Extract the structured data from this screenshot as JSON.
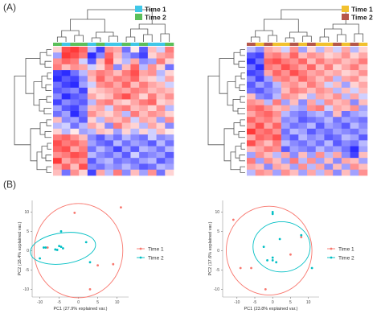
{
  "figure": {
    "panel_a_label": "(A)",
    "panel_b_label": "(B)"
  },
  "heatmap_left": {
    "legend": [
      {
        "label": "Time 1",
        "color": "#3fc7e8"
      },
      {
        "label": "Time 2",
        "color": "#5bbf5a"
      }
    ],
    "rows": 22,
    "cols": 14,
    "values": [
      [
        0.2,
        0.8,
        0.9,
        0.7,
        -0.3,
        -0.8,
        0.5,
        0.4,
        -0.6,
        0.1,
        -0.7,
        0.3,
        -0.2,
        0.6
      ],
      [
        -0.4,
        0.9,
        0.8,
        0.6,
        -0.9,
        -0.5,
        0.7,
        0.3,
        -0.4,
        -0.6,
        -0.8,
        0.2,
        0.4,
        0.5
      ],
      [
        0.5,
        0.7,
        0.6,
        -0.2,
        -0.7,
        0.3,
        0.8,
        0.2,
        -0.3,
        0.4,
        -0.5,
        -0.4,
        0.6,
        0.2
      ],
      [
        0.6,
        0.3,
        0.5,
        0.4,
        -0.2,
        0.2,
        0.6,
        -0.5,
        0.3,
        0.7,
        -0.3,
        0.5,
        0.2,
        -0.6
      ],
      [
        -0.8,
        -0.9,
        -0.6,
        -0.3,
        0.4,
        0.6,
        0.5,
        0.3,
        0.6,
        0.8,
        0.4,
        0.5,
        -0.3,
        0.2
      ],
      [
        -0.9,
        -0.7,
        -0.8,
        -0.5,
        0.3,
        0.7,
        0.4,
        0.6,
        0.5,
        0.7,
        0.3,
        0.2,
        -0.2,
        0.4
      ],
      [
        -0.6,
        -0.8,
        -0.9,
        -0.4,
        -0.2,
        0.5,
        0.6,
        0.4,
        0.7,
        0.3,
        0.6,
        0.4,
        0.3,
        -0.2
      ],
      [
        -0.7,
        -0.6,
        -0.5,
        -0.8,
        0.2,
        0.3,
        0.4,
        0.5,
        0.4,
        0.6,
        0.5,
        0.3,
        0.4,
        0.3
      ],
      [
        -0.5,
        -0.9,
        -0.7,
        -0.6,
        0.4,
        0.2,
        0.3,
        0.6,
        0.8,
        0.5,
        0.2,
        0.6,
        0.3,
        0.5
      ],
      [
        -0.8,
        -0.5,
        -0.6,
        -0.7,
        -0.3,
        0.5,
        0.6,
        0.3,
        0.2,
        0.4,
        0.6,
        0.7,
        0.2,
        0.3
      ],
      [
        -0.4,
        -0.7,
        -0.8,
        -0.5,
        0.3,
        0.4,
        -0.2,
        0.5,
        0.6,
        0.3,
        0.4,
        0.2,
        0.5,
        -0.3
      ],
      [
        -0.6,
        -0.4,
        -0.9,
        -0.6,
        0.5,
        0.3,
        0.2,
        0.4,
        -0.3,
        0.6,
        0.3,
        0.5,
        0.4,
        0.2
      ],
      [
        0.3,
        -0.5,
        -0.4,
        -0.7,
        0.2,
        -0.3,
        0.4,
        0.3,
        0.5,
        -0.2,
        0.4,
        0.3,
        -0.4,
        0.5
      ],
      [
        -0.3,
        -0.2,
        -0.6,
        -0.3,
        0.4,
        0.2,
        -0.5,
        0.6,
        0.3,
        0.2,
        -0.3,
        0.4,
        0.2,
        -0.5
      ],
      [
        0.2,
        -0.3,
        0.1,
        -0.4,
        -0.3,
        0.3,
        0.2,
        -0.4,
        0.2,
        -0.3,
        0.2,
        -0.2,
        0.3,
        0.1
      ],
      [
        0.6,
        0.7,
        0.5,
        0.3,
        -0.5,
        -0.7,
        -0.4,
        -0.6,
        -0.3,
        -0.5,
        -0.6,
        -0.2,
        -0.5,
        -0.4
      ],
      [
        0.8,
        0.6,
        0.7,
        0.5,
        -0.4,
        -0.6,
        -0.7,
        -0.3,
        -0.6,
        -0.4,
        -0.5,
        -0.7,
        -0.3,
        -0.6
      ],
      [
        0.7,
        0.8,
        0.4,
        0.6,
        -0.6,
        -0.3,
        -0.5,
        -0.8,
        -0.4,
        -0.7,
        -0.3,
        -0.4,
        -0.6,
        -0.3
      ],
      [
        0.5,
        0.6,
        0.8,
        0.7,
        -0.3,
        -0.5,
        -0.6,
        -0.4,
        -0.7,
        -0.2,
        -0.6,
        -0.5,
        -0.4,
        -0.7
      ],
      [
        0.9,
        0.4,
        0.6,
        0.5,
        -0.7,
        -0.4,
        -0.3,
        -0.6,
        -0.5,
        -0.6,
        -0.4,
        -0.3,
        -0.7,
        -0.5
      ],
      [
        0.4,
        0.7,
        0.3,
        0.8,
        -0.5,
        -0.6,
        -0.4,
        -0.5,
        -0.3,
        -0.5,
        -0.7,
        -0.6,
        -0.3,
        -0.4
      ],
      [
        0.3,
        -0.6,
        0.5,
        0.2,
        -0.8,
        0.4,
        -0.3,
        0.6,
        -0.5,
        0.3,
        -0.4,
        0.5,
        -0.6,
        0.2
      ]
    ]
  },
  "heatmap_right": {
    "legend": [
      {
        "label": "Time 1",
        "color": "#f2c12e"
      },
      {
        "label": "Time 2",
        "color": "#b6574a"
      }
    ],
    "rows": 22,
    "cols": 14,
    "values": [
      [
        -0.3,
        -0.5,
        0.4,
        0.3,
        -0.2,
        0.5,
        -0.4,
        0.2,
        -0.3,
        0.3,
        -0.2,
        0.4,
        -0.3,
        0.2
      ],
      [
        -0.7,
        -0.8,
        0.5,
        0.6,
        0.4,
        0.7,
        0.3,
        0.5,
        0.4,
        0.2,
        0.3,
        0.5,
        0.2,
        0.4
      ],
      [
        -0.9,
        -0.6,
        0.7,
        0.8,
        0.6,
        0.5,
        0.7,
        0.3,
        0.6,
        0.4,
        0.5,
        0.3,
        0.4,
        0.6
      ],
      [
        -0.6,
        -0.9,
        0.6,
        0.5,
        0.8,
        0.6,
        0.4,
        0.7,
        0.3,
        0.6,
        0.2,
        0.4,
        0.6,
        0.3
      ],
      [
        -0.8,
        -0.7,
        0.4,
        0.7,
        0.5,
        0.8,
        0.6,
        0.4,
        0.5,
        0.3,
        0.4,
        0.2,
        0.3,
        0.5
      ],
      [
        -0.5,
        -0.8,
        -0.4,
        0.5,
        0.6,
        0.4,
        0.7,
        0.5,
        0.3,
        0.5,
        -0.3,
        0.4,
        0.5,
        0.2
      ],
      [
        -0.7,
        -0.4,
        -0.6,
        -0.3,
        0.4,
        0.5,
        0.3,
        0.6,
        0.4,
        -0.2,
        0.3,
        -0.4,
        0.2,
        0.4
      ],
      [
        -0.6,
        -0.7,
        -0.5,
        -0.4,
        0.3,
        0.6,
        0.5,
        0.3,
        0.5,
        0.4,
        -0.3,
        0.3,
        -0.2,
        0.3
      ],
      [
        0.3,
        -0.5,
        -0.6,
        -0.3,
        0.5,
        0.4,
        0.2,
        -0.3,
        0.4,
        0.3,
        0.5,
        -0.3,
        0.4,
        -0.2
      ],
      [
        0.5,
        0.4,
        -0.3,
        0.6,
        -0.4,
        0.3,
        -0.5,
        0.4,
        -0.3,
        0.5,
        0.3,
        0.4,
        -0.5,
        0.3
      ],
      [
        0.6,
        0.7,
        0.5,
        0.3,
        0.4,
        -0.3,
        -0.4,
        0.5,
        0.6,
        -0.2,
        0.4,
        0.3,
        0.5,
        -0.4
      ],
      [
        0.4,
        0.6,
        0.7,
        0.5,
        -0.3,
        -0.5,
        -0.6,
        -0.4,
        -0.3,
        -0.5,
        0.3,
        -0.6,
        -0.4,
        -0.3
      ],
      [
        0.7,
        0.5,
        0.6,
        0.4,
        -0.5,
        -0.4,
        -0.7,
        -0.6,
        -0.5,
        -0.3,
        -0.6,
        -0.4,
        -0.5,
        -0.6
      ],
      [
        0.5,
        0.8,
        0.4,
        0.7,
        -0.4,
        -0.6,
        -0.5,
        -0.3,
        -0.7,
        -0.4,
        -0.5,
        -0.7,
        -0.3,
        -0.5
      ],
      [
        0.9,
        0.6,
        0.7,
        0.5,
        -0.6,
        -0.3,
        -0.4,
        -0.7,
        -0.5,
        -0.6,
        -0.4,
        -0.5,
        -0.6,
        -0.4
      ],
      [
        0.4,
        0.7,
        0.6,
        0.8,
        -0.5,
        -0.7,
        -0.3,
        -0.5,
        -0.4,
        -0.7,
        -0.6,
        -0.3,
        -0.4,
        -0.7
      ],
      [
        0.8,
        0.5,
        0.3,
        0.6,
        -0.3,
        -0.5,
        -0.6,
        -0.4,
        -0.6,
        -0.3,
        -0.7,
        -0.5,
        -0.6,
        -0.3
      ],
      [
        0.3,
        0.4,
        0.6,
        0.5,
        -0.7,
        -0.4,
        -0.5,
        -0.6,
        -0.3,
        -0.5,
        -0.4,
        -0.6,
        -0.9,
        -0.4
      ],
      [
        -0.4,
        0.5,
        0.3,
        -0.3,
        0.4,
        -0.5,
        0.3,
        -0.4,
        0.5,
        -0.3,
        0.4,
        -0.5,
        -0.8,
        0.3
      ],
      [
        0.6,
        -0.4,
        0.5,
        0.3,
        -0.4,
        0.6,
        -0.3,
        0.5,
        -0.4,
        0.3,
        -0.5,
        0.4,
        0.3,
        -0.4
      ],
      [
        0.4,
        0.3,
        -0.5,
        0.4,
        0.3,
        -0.4,
        0.5,
        -0.3,
        0.4,
        -0.5,
        0.3,
        -0.4,
        0.5,
        0.3
      ],
      [
        -0.3,
        0.5,
        0.4,
        -0.4,
        0.5,
        0.3,
        -0.4,
        0.4,
        -0.3,
        0.4,
        -0.5,
        0.3,
        -0.4,
        0.5
      ]
    ]
  },
  "chart_data": [
    {
      "type": "scatter",
      "xlabel": "PC1 (27.9% explained var.)",
      "ylabel": "PC2 (18.4% explained var.)",
      "xlim": [
        -12,
        13
      ],
      "ylim": [
        -12,
        13
      ],
      "xticks": [
        -10,
        -5,
        0,
        5,
        10
      ],
      "yticks": [
        -10,
        -5,
        0,
        5,
        10
      ],
      "series": [
        {
          "name": "Time 1",
          "color": "#f8766d",
          "points": [
            [
              -1,
              9.8
            ],
            [
              11,
              11.2
            ],
            [
              5,
              -3.8
            ],
            [
              -8,
              0.8
            ],
            [
              9,
              -3.5
            ],
            [
              3,
              -10
            ]
          ],
          "ellipse": {
            "cx": 0,
            "cy": 0,
            "rx": 11.5,
            "ry": 12.2,
            "angle": 0
          }
        },
        {
          "name": "Time 2",
          "color": "#00bfc4",
          "points": [
            [
              -8.5,
              0.8
            ],
            [
              -6,
              0.3
            ],
            [
              -5,
              1.2
            ],
            [
              -4,
              0.6
            ],
            [
              -5.5,
              0.2
            ],
            [
              -4.5,
              1.0
            ],
            [
              -4.5,
              5
            ],
            [
              2,
              2.2
            ],
            [
              3,
              -3
            ],
            [
              -10,
              -2
            ],
            [
              -9,
              0.8
            ]
          ],
          "ellipse": {
            "cx": -4,
            "cy": 0.6,
            "rx": 8.5,
            "ry": 4,
            "angle": -8
          }
        }
      ],
      "legend": "right"
    },
    {
      "type": "scatter",
      "xlabel": "PC1 (23.8% explained var.)",
      "ylabel": "PC2 (17.6% explained var.)",
      "xlim": [
        -14,
        13
      ],
      "ylim": [
        -12,
        13
      ],
      "xticks": [
        -10,
        -5,
        0,
        5,
        10
      ],
      "yticks": [
        -10,
        -5,
        0,
        5,
        10
      ],
      "series": [
        {
          "name": "Time 1",
          "color": "#f8766d",
          "points": [
            [
              -11,
              8
            ],
            [
              -9,
              -4.5
            ],
            [
              -6,
              -4.5
            ],
            [
              -2,
              -10
            ],
            [
              5,
              -1
            ],
            [
              8,
              3.5
            ]
          ],
          "ellipse": {
            "cx": -1,
            "cy": 0,
            "rx": 12,
            "ry": 11.5,
            "angle": 0
          }
        },
        {
          "name": "Time 2",
          "color": "#00bfc4",
          "points": [
            [
              0,
              10
            ],
            [
              0,
              9.5
            ],
            [
              2,
              3
            ],
            [
              -1.5,
              -2.5
            ],
            [
              0,
              -2.5
            ],
            [
              -2.5,
              1
            ],
            [
              0,
              -1.8
            ],
            [
              8,
              4
            ],
            [
              11,
              -4.5
            ],
            [
              1,
              -3
            ]
          ],
          "ellipse": {
            "cx": 2.5,
            "cy": 1,
            "rx": 8,
            "ry": 6.5,
            "angle": 0
          }
        }
      ],
      "legend": "right"
    }
  ]
}
